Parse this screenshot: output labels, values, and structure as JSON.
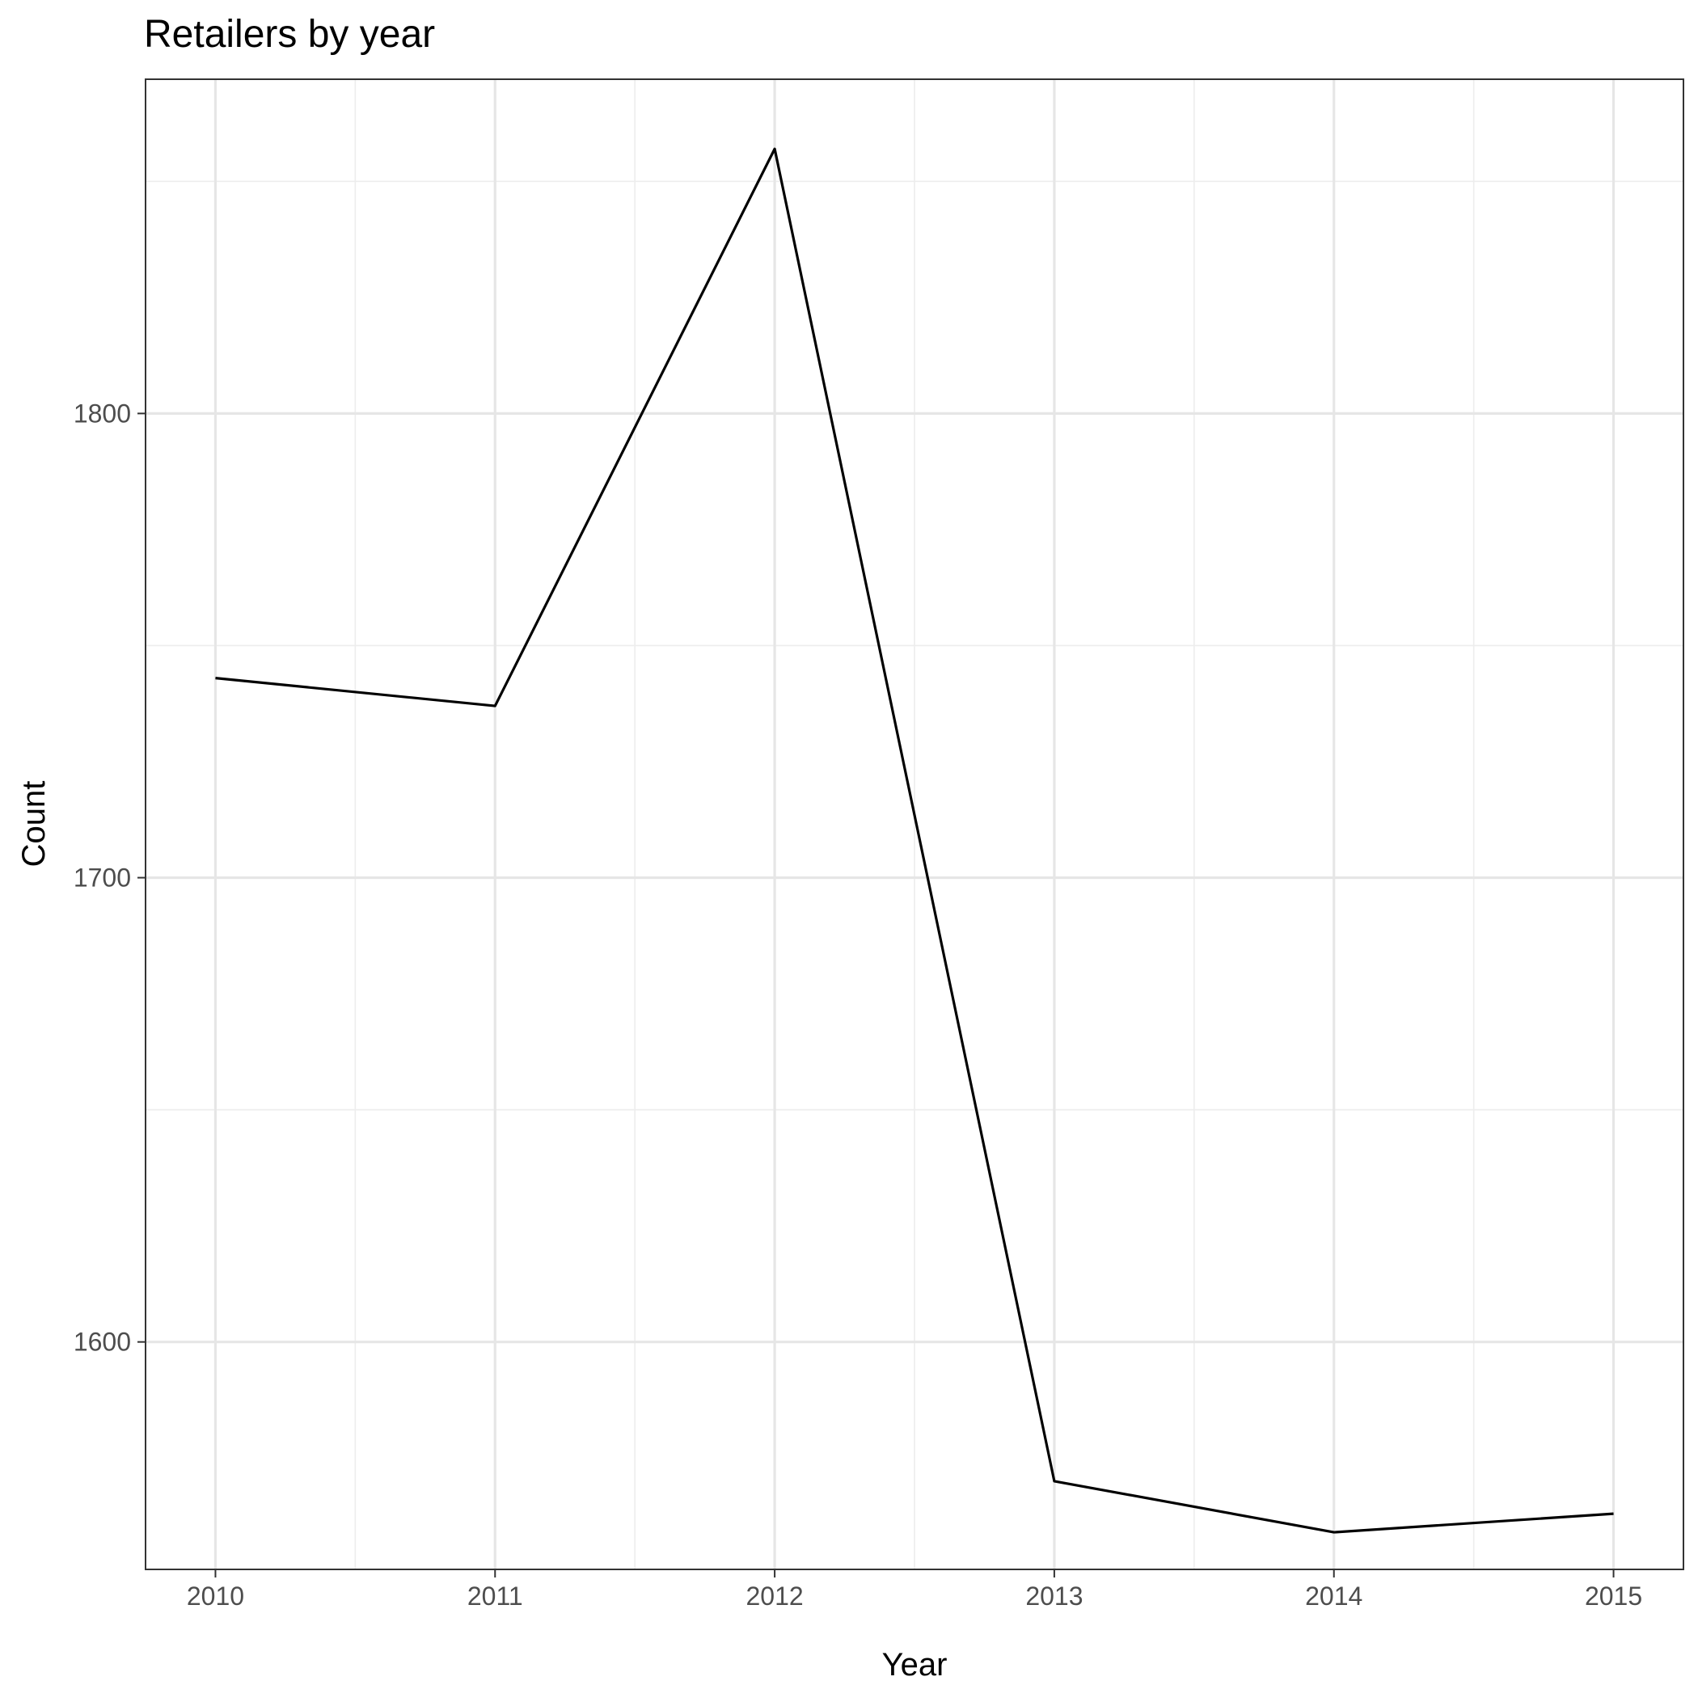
{
  "chart_data": {
    "type": "line",
    "title": "Retailers by year",
    "xlabel": "Year",
    "ylabel": "Count",
    "x": [
      2010,
      2011,
      2012,
      2013,
      2014,
      2015
    ],
    "series": [
      {
        "values": [
          1743,
          1737,
          1857,
          1570,
          1559,
          1563
        ]
      }
    ],
    "xlim": [
      2009.75,
      2015.25
    ],
    "ylim": [
      1551,
      1872
    ],
    "x_ticks": [
      "2010",
      "2011",
      "2012",
      "2013",
      "2014",
      "2015"
    ],
    "y_ticks": [
      "1600",
      "1700",
      "1800"
    ],
    "grid": true,
    "legend": "none",
    "line_color": "#000000"
  }
}
